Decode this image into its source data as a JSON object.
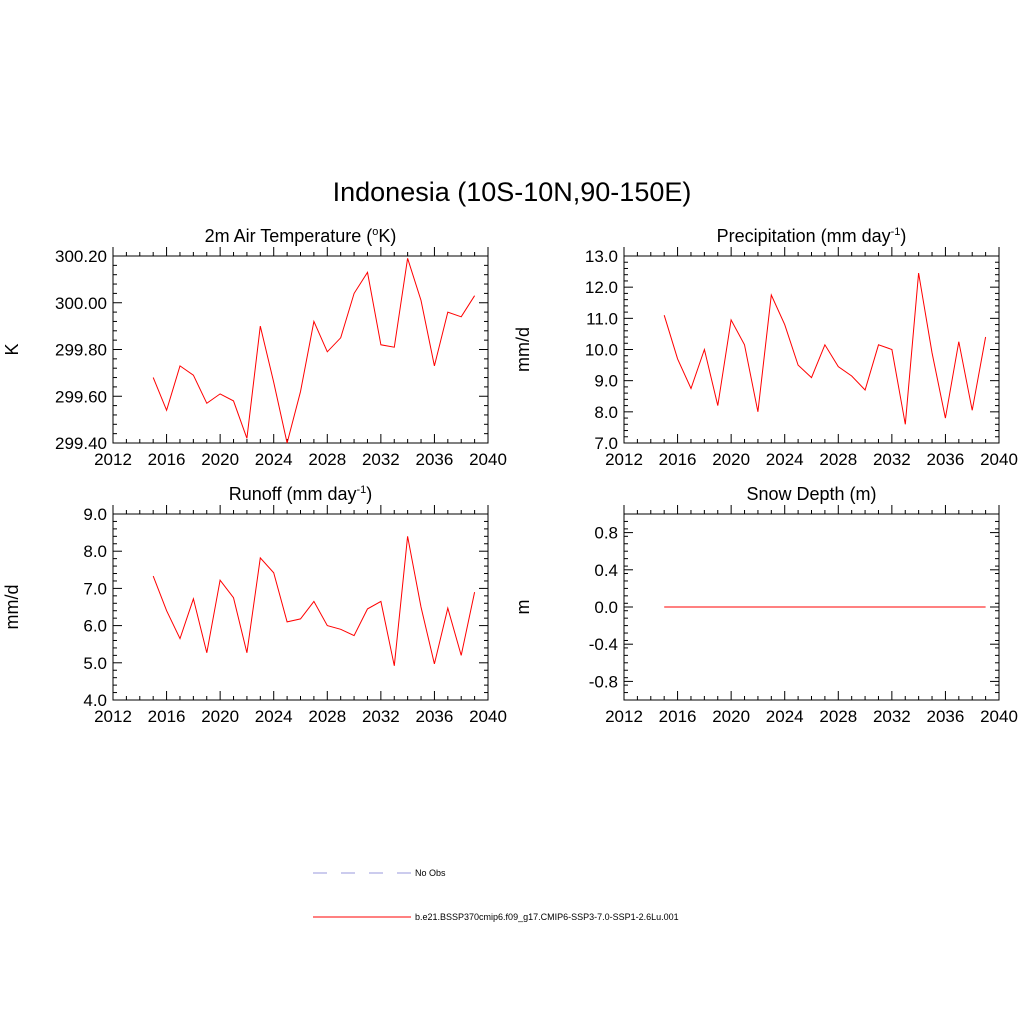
{
  "title": "Indonesia (10S-10N,90-150E)",
  "chart_data": [
    {
      "type": "line",
      "title_main": "2m Air Temperature (",
      "title_sup": "o",
      "title_end": "K)",
      "ylabel": "K",
      "xlim": [
        2012,
        2040
      ],
      "ylim": [
        299.4,
        300.2
      ],
      "xticks": [
        "2012",
        "2016",
        "2020",
        "2024",
        "2028",
        "2032",
        "2036",
        "2040"
      ],
      "yticks": [
        "299.40",
        "299.60",
        "299.80",
        "300.00",
        "300.20"
      ],
      "ytick_values": [
        299.4,
        299.6,
        299.8,
        300.0,
        300.2
      ],
      "series": [
        {
          "color": "#ff0000",
          "x": [
            2015,
            2016,
            2017,
            2018,
            2019,
            2020,
            2021,
            2022,
            2023,
            2024,
            2025,
            2026,
            2027,
            2028,
            2029,
            2030,
            2031,
            2032,
            2033,
            2034,
            2035,
            2036,
            2037,
            2038,
            2039
          ],
          "y": [
            299.68,
            299.54,
            299.73,
            299.69,
            299.57,
            299.61,
            299.58,
            299.42,
            299.9,
            299.66,
            299.4,
            299.62,
            299.92,
            299.79,
            299.85,
            300.04,
            300.13,
            299.82,
            299.81,
            300.19,
            300.01,
            299.73,
            299.96,
            299.94,
            300.03
          ]
        }
      ]
    },
    {
      "type": "line",
      "title_main": "Precipitation (mm day",
      "title_sup": "-1",
      "title_end": ")",
      "ylabel": "mm/d",
      "xlim": [
        2012,
        2040
      ],
      "ylim": [
        7.0,
        13.0
      ],
      "xticks": [
        "2012",
        "2016",
        "2020",
        "2024",
        "2028",
        "2032",
        "2036",
        "2040"
      ],
      "yticks": [
        "7.0",
        "8.0",
        "9.0",
        "10.0",
        "11.0",
        "12.0",
        "13.0"
      ],
      "ytick_values": [
        7,
        8,
        9,
        10,
        11,
        12,
        13
      ],
      "series": [
        {
          "color": "#ff0000",
          "x": [
            2015,
            2016,
            2017,
            2018,
            2019,
            2020,
            2021,
            2022,
            2023,
            2024,
            2025,
            2026,
            2027,
            2028,
            2029,
            2030,
            2031,
            2032,
            2033,
            2034,
            2035,
            2036,
            2037,
            2038,
            2039
          ],
          "y": [
            11.1,
            9.7,
            8.75,
            10.0,
            8.2,
            10.95,
            10.15,
            8.0,
            11.75,
            10.8,
            9.5,
            9.1,
            10.15,
            9.45,
            9.15,
            8.7,
            10.15,
            10.0,
            7.6,
            12.45,
            9.9,
            7.8,
            10.25,
            8.05,
            10.4
          ]
        }
      ]
    },
    {
      "type": "line",
      "title_main": "Runoff (mm day",
      "title_sup": "-1",
      "title_end": ")",
      "ylabel": "mm/d",
      "xlim": [
        2012,
        2040
      ],
      "ylim": [
        4.0,
        9.0
      ],
      "xticks": [
        "2012",
        "2016",
        "2020",
        "2024",
        "2028",
        "2032",
        "2036",
        "2040"
      ],
      "yticks": [
        "4.0",
        "5.0",
        "6.0",
        "7.0",
        "8.0",
        "9.0"
      ],
      "ytick_values": [
        4,
        5,
        6,
        7,
        8,
        9
      ],
      "series": [
        {
          "color": "#ff0000",
          "x": [
            2015,
            2016,
            2017,
            2018,
            2019,
            2020,
            2021,
            2022,
            2023,
            2024,
            2025,
            2026,
            2027,
            2028,
            2029,
            2030,
            2031,
            2032,
            2033,
            2034,
            2035,
            2036,
            2037,
            2038,
            2039
          ],
          "y": [
            7.33,
            6.4,
            5.65,
            6.72,
            5.27,
            7.22,
            6.75,
            5.27,
            7.82,
            7.42,
            6.1,
            6.18,
            6.65,
            6.0,
            5.9,
            5.73,
            6.45,
            6.65,
            4.92,
            8.4,
            6.5,
            4.97,
            6.47,
            5.2,
            6.9
          ]
        }
      ]
    },
    {
      "type": "line",
      "title_main": "Snow Depth (m)",
      "title_sup": "",
      "title_end": "",
      "ylabel": "m",
      "xlim": [
        2012,
        2040
      ],
      "ylim": [
        -1.0,
        1.0
      ],
      "xticks": [
        "2012",
        "2016",
        "2020",
        "2024",
        "2028",
        "2032",
        "2036",
        "2040"
      ],
      "yticks": [
        "-0.8",
        "-0.4",
        "0.0",
        "0.4",
        "0.8"
      ],
      "ytick_values": [
        -0.8,
        -0.4,
        0.0,
        0.4,
        0.8
      ],
      "series": [
        {
          "color": "#ff0000",
          "x": [
            2015,
            2016,
            2017,
            2018,
            2019,
            2020,
            2021,
            2022,
            2023,
            2024,
            2025,
            2026,
            2027,
            2028,
            2029,
            2030,
            2031,
            2032,
            2033,
            2034,
            2035,
            2036,
            2037,
            2038,
            2039
          ],
          "y": [
            0,
            0,
            0,
            0,
            0,
            0,
            0,
            0,
            0,
            0,
            0,
            0,
            0,
            0,
            0,
            0,
            0,
            0,
            0,
            0,
            0,
            0,
            0,
            0,
            0
          ]
        }
      ]
    }
  ],
  "legend": {
    "placement": "bottom-center",
    "items": [
      {
        "label": "No Obs",
        "color": "#9999dd",
        "style": "dashed"
      },
      {
        "label": "b.e21.BSSP370cmip6.f09_g17.CMIP6-SSP3-7.0-SSP1-2.6Lu.001",
        "color": "#ff0000",
        "style": "solid"
      }
    ]
  }
}
